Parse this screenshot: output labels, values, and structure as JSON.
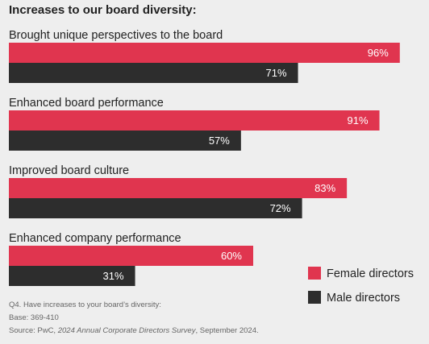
{
  "chart_data": {
    "type": "bar",
    "orientation": "horizontal",
    "title": "Increases to our board diversity:",
    "categories": [
      "Brought unique perspectives to the board",
      "Enhanced board performance",
      "Improved board culture",
      "Enhanced company performance"
    ],
    "series": [
      {
        "name": "Female directors",
        "values": [
          96,
          91,
          83,
          60
        ],
        "color": "#e0354f"
      },
      {
        "name": "Male directors",
        "values": [
          71,
          57,
          72,
          31
        ],
        "color": "#2d2d2d"
      }
    ],
    "value_suffix": "%",
    "xlim": [
      0,
      100
    ],
    "grid": false,
    "legend_position": "bottom-right"
  },
  "footnotes": {
    "question": "Q4. Have increases to your board’s diversity:",
    "base": "Base: 369-410",
    "source_prefix": "Source: PwC, ",
    "source_title": "2024 Annual Corporate Directors Survey",
    "source_suffix": ", September 2024."
  }
}
